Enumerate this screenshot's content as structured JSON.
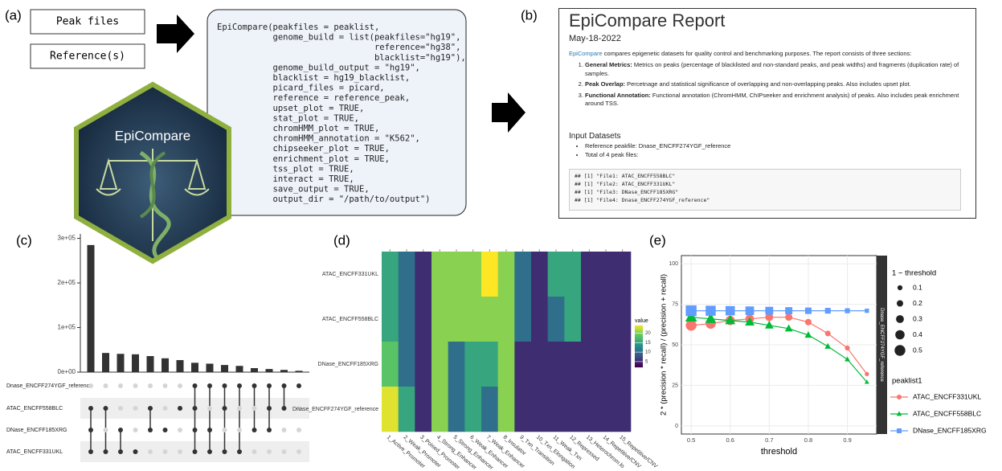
{
  "panel_labels": [
    "(a)",
    "(b)",
    "(c)",
    "(d)",
    "(e)"
  ],
  "inputs": [
    "Peak files",
    "Reference(s)"
  ],
  "logo_text": "EpiCompare",
  "code": [
    "EpiCompare(peakfiles = peaklist,",
    "           genome_build = list(peakfiles=\"hg19\",",
    "                               reference=\"hg38\",",
    "                               blacklist=\"hg19\"),",
    "           genome_build_output = \"hg19\",",
    "           blacklist = hg19_blacklist,",
    "           picard_files = picard,",
    "           reference = reference_peak,",
    "           upset_plot = TRUE,",
    "           stat_plot = TRUE,",
    "           chromHMM_plot = TRUE,",
    "           chromHMM_annotation = \"K562\",",
    "           chipseeker_plot = TRUE,",
    "           enrichment_plot = TRUE,",
    "           tss_plot = TRUE,",
    "           interact = TRUE,",
    "           save_output = TRUE,",
    "           output_dir = \"/path/to/output\")"
  ],
  "report": {
    "title": "EpiCompare Report",
    "date": "May-18-2022",
    "intro_link": "EpiCompare",
    "intro": " compares epigenetic datasets for quality control and benchmarking purposes. The report consists of three sections:",
    "sections": [
      {
        "name": "General Metrics:",
        "text": " Metrics on peaks (percentage of blacklisted and non-standard peaks, and peak widths) and fragments (duplication rate) of samples."
      },
      {
        "name": "Peak Overlap:",
        "text": " Percetnage and statistical significance of overlapping and non-overlapping peaks. Also includes upset plot."
      },
      {
        "name": "Functional Annotation:",
        "text": " Functional annotation (ChromHMM, ChIPseeker and enrichment analysis) of peaks. Also includes peak enrichment around TSS."
      }
    ],
    "datasets_heading": "Input Datasets",
    "bullets": [
      "Reference peakfile: Dnase_ENCFF274YGF_reference",
      "Total of 4 peak files:"
    ],
    "output": [
      "## [1] \"File1: ATAC_ENCFF558BLC\"",
      "## [1] \"File2: ATAC_ENCFF331UKL\"",
      "## [1] \"File3: DNase_ENCFF185XRG\"",
      "## [1] \"File4: Dnase_ENCFF274YGF_reference\""
    ]
  },
  "chart_data": [
    {
      "type": "upset",
      "values": [
        285000,
        43000,
        41000,
        40000,
        36000,
        31000,
        27000,
        21000,
        19000,
        16000,
        14000,
        9000,
        7000,
        5000,
        3000
      ],
      "set_names": [
        "Dnase_ENCFF274YGF_reference",
        "ATAC_ENCFF558BLC",
        "DNase_ENCFF185XRG",
        "ATAC_ENCFF331UKL"
      ],
      "sets": [
        [
          1,
          2,
          3
        ],
        [
          1,
          3
        ],
        [
          2,
          3
        ],
        [
          3
        ],
        [
          1,
          2
        ],
        [
          2
        ],
        [
          1
        ],
        [
          0,
          1,
          2,
          3
        ],
        [
          0,
          2,
          3
        ],
        [
          0,
          1,
          3
        ],
        [
          0,
          3
        ],
        [
          0,
          2
        ],
        [
          0,
          1,
          2
        ],
        [
          0,
          1
        ],
        [
          0
        ]
      ],
      "ylim": [
        0,
        310000
      ],
      "yticks": [
        {
          "value": 0,
          "label": "0e+00"
        },
        {
          "value": 100000,
          "label": "1e+05"
        },
        {
          "value": 200000,
          "label": "2e+05"
        },
        {
          "value": 300000,
          "label": "3e+05"
        }
      ],
      "color": "#333333"
    },
    {
      "type": "heatmap",
      "rows": [
        "ATAC_ENCFF331UKL",
        "ATAC_ENCFF558BLC",
        "DNase_ENCFF185XRG",
        "Dnase_ENCFF274YGF_reference"
      ],
      "columns": [
        "1_Active_Promoter",
        "2_Weak_Promoter",
        "3_Poised_Promoter",
        "4_Strong_Enhancer",
        "5_Strong_Enhancer",
        "6_Weak_Enhancer",
        "7_Weak_Enhancer",
        "8_Insulator",
        "9_Txn_Transition",
        "10_Txn_Elongation",
        "11_Weak_Txn",
        "12_Repressed",
        "13_Heterochrom.lo",
        "14_Repetitive/CNV",
        "15_Repetitive/CNV"
      ],
      "values": [
        [
          15,
          10,
          5,
          20,
          20,
          20,
          24,
          20,
          10,
          5,
          15,
          15,
          5,
          5,
          5
        ],
        [
          15,
          10,
          5,
          20,
          20,
          20,
          20,
          20,
          10,
          5,
          10,
          15,
          5,
          5,
          5
        ],
        [
          18,
          10,
          5,
          20,
          10,
          15,
          15,
          20,
          5,
          5,
          5,
          5,
          5,
          5,
          5
        ],
        [
          23,
          15,
          5,
          20,
          10,
          15,
          10,
          20,
          5,
          5,
          5,
          5,
          5,
          5,
          5
        ]
      ],
      "legend_title": "value",
      "zlim": [
        2,
        24
      ],
      "zticks": [
        5,
        10,
        15,
        20
      ],
      "colormap": [
        "#440154",
        "#3b528b",
        "#21918c",
        "#5ec962",
        "#fde725"
      ]
    },
    {
      "type": "line",
      "x": [
        0.5,
        0.55,
        0.6,
        0.65,
        0.7,
        0.75,
        0.8,
        0.85,
        0.9,
        0.95
      ],
      "sizes": [
        0.5,
        0.45,
        0.4,
        0.35,
        0.3,
        0.25,
        0.2,
        0.15,
        0.1,
        0.05
      ],
      "series": [
        {
          "name": "ATAC_ENCFF331UKL",
          "color": "#f8766d",
          "shape": "circle",
          "values": [
            62,
            63,
            65,
            66,
            67,
            67,
            64,
            57,
            48,
            32
          ]
        },
        {
          "name": "ATAC_ENCFF558BLC",
          "color": "#00ba38",
          "shape": "triangle",
          "values": [
            67,
            66,
            65,
            64,
            62,
            60,
            56,
            49,
            41,
            27
          ]
        },
        {
          "name": "DNase_ENCFF185XRG",
          "color": "#619cff",
          "shape": "square",
          "values": [
            71,
            71,
            71,
            71,
            71,
            71,
            71,
            71,
            71,
            71
          ]
        }
      ],
      "xlim": [
        0.475,
        0.975
      ],
      "ylim": [
        -5,
        105
      ],
      "xticks": [
        0.5,
        0.6,
        0.7,
        0.8,
        0.9
      ],
      "yticks": [
        0,
        25,
        50,
        75,
        100
      ],
      "xlabel": "threshold",
      "ylabel": "2 * (precision * recall) / (precision + recall)",
      "strip": "Dnase_ENCFF274YGF_reference",
      "size_legend": {
        "title": "1 − threshold",
        "values": [
          0.1,
          0.2,
          0.3,
          0.4,
          0.5
        ]
      },
      "legend_title": "peaklist1",
      "grid": true
    }
  ]
}
